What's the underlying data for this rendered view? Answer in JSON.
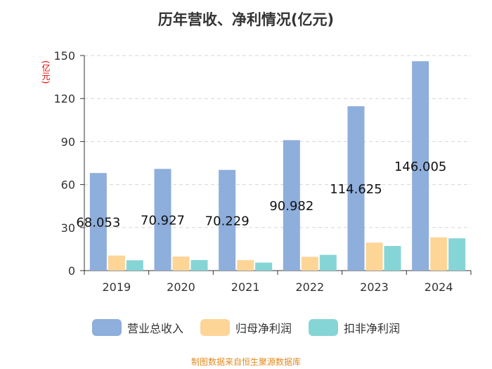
{
  "chart_data": {
    "type": "bar",
    "title": "历年营收、净利情况(亿元)",
    "ylabel": "(亿元)",
    "xlabel": "",
    "categories": [
      "2019",
      "2020",
      "2021",
      "2022",
      "2023",
      "2024"
    ],
    "ylim": [
      0,
      150
    ],
    "yticks": [
      0,
      30,
      60,
      90,
      120,
      150
    ],
    "grid": true,
    "legend_position": "bottom",
    "series": [
      {
        "name": "营业总收入",
        "color": "#8eaedc",
        "values": [
          68.053,
          70.927,
          70.229,
          90.982,
          114.625,
          146.005
        ],
        "labels": [
          "68.053",
          "70.927",
          "70.229",
          "90.982",
          "114.625",
          "146.005"
        ]
      },
      {
        "name": "归母净利润",
        "color": "#fdd597",
        "values": [
          10.5,
          9.8,
          7.3,
          9.6,
          19.5,
          23.2
        ]
      },
      {
        "name": "扣非净利润",
        "color": "#86d5d6",
        "values": [
          7.2,
          7.4,
          5.6,
          11.0,
          17.2,
          22.5
        ]
      }
    ]
  },
  "source": "制图数据来自恒生聚源数据库"
}
